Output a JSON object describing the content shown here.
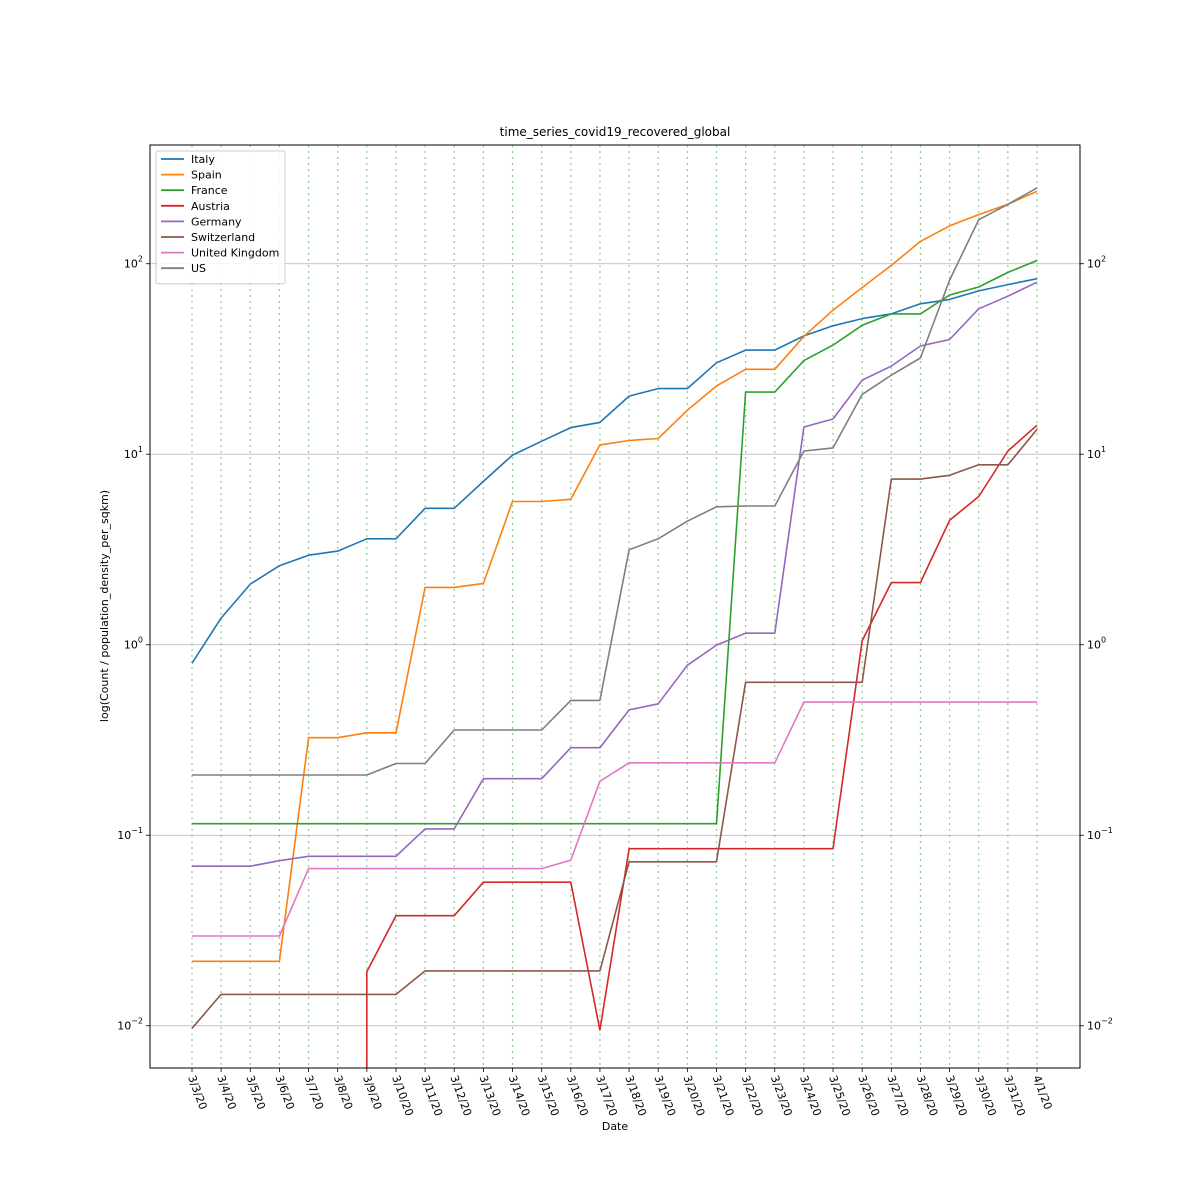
{
  "chart_data": {
    "type": "line",
    "title": "time_series_covid19_recovered_global",
    "xlabel": "Date",
    "ylabel": "log(Count / population_density_per_sqkm)",
    "y_scale": "log",
    "ylim": [
      0.006,
      420
    ],
    "y_ticks": [
      0.01,
      0.1,
      1,
      10,
      100
    ],
    "y_tick_labels": [
      {
        "base": "10",
        "exp": "−2"
      },
      {
        "base": "10",
        "exp": "−1"
      },
      {
        "base": "10",
        "exp": "0"
      },
      {
        "base": "10",
        "exp": "1"
      },
      {
        "base": "10",
        "exp": "2"
      }
    ],
    "grid": {
      "horizontal": "major y ticks (gray solid)",
      "vertical": "every date (green dotted)"
    },
    "legend_position": "top-left",
    "dual_y_axis": true,
    "categories": [
      "3/3/20",
      "3/4/20",
      "3/5/20",
      "3/6/20",
      "3/7/20",
      "3/8/20",
      "3/9/20",
      "3/10/20",
      "3/11/20",
      "3/12/20",
      "3/13/20",
      "3/14/20",
      "3/15/20",
      "3/16/20",
      "3/17/20",
      "3/18/20",
      "3/19/20",
      "3/20/20",
      "3/21/20",
      "3/22/20",
      "3/23/20",
      "3/24/20",
      "3/25/20",
      "3/26/20",
      "3/27/20",
      "3/28/20",
      "3/29/20",
      "3/30/20",
      "3/31/20",
      "4/1/20"
    ],
    "series": [
      {
        "name": "Italy",
        "color": "#1f77b4",
        "values": [
          0.8,
          1.38,
          2.08,
          2.6,
          2.95,
          3.1,
          3.6,
          3.6,
          5.2,
          5.2,
          7.2,
          9.9,
          11.7,
          13.8,
          14.7,
          20.2,
          22.1,
          22.1,
          30.2,
          35.2,
          35.2,
          41.8,
          47.2,
          51.5,
          54.5,
          61.6,
          65.0,
          72.0,
          77.7,
          83.4
        ]
      },
      {
        "name": "Spain",
        "color": "#ff7f0e",
        "values": [
          0.0218,
          0.0218,
          0.0218,
          0.0218,
          0.325,
          0.325,
          0.345,
          0.345,
          2.0,
          2.0,
          2.1,
          5.65,
          5.65,
          5.8,
          11.2,
          11.8,
          12.1,
          17.0,
          22.8,
          27.9,
          27.9,
          41.6,
          57.0,
          75.0,
          98.0,
          131,
          158,
          181,
          205,
          240
        ]
      },
      {
        "name": "France",
        "color": "#2ca02c",
        "values": [
          0.115,
          0.115,
          0.115,
          0.115,
          0.115,
          0.115,
          0.115,
          0.115,
          0.115,
          0.115,
          0.115,
          0.115,
          0.115,
          0.115,
          0.115,
          0.115,
          0.115,
          0.115,
          0.115,
          21.2,
          21.2,
          31.0,
          37.4,
          47.5,
          54.5,
          54.5,
          68.5,
          75.5,
          90.0,
          104
        ]
      },
      {
        "name": "Austria",
        "color": "#d62728",
        "values": [
          null,
          null,
          null,
          null,
          null,
          null,
          0.0192,
          0.0378,
          0.0378,
          0.0378,
          0.0567,
          0.0567,
          0.0567,
          0.0567,
          0.0095,
          0.085,
          0.085,
          0.085,
          0.085,
          0.085,
          0.085,
          0.085,
          0.085,
          1.05,
          2.12,
          2.12,
          4.5,
          6.0,
          10.4,
          14.2
        ]
      },
      {
        "name": "Germany",
        "color": "#9467bd",
        "values": [
          0.0688,
          0.0688,
          0.0688,
          0.0735,
          0.0775,
          0.0775,
          0.0775,
          0.0775,
          0.108,
          0.108,
          0.198,
          0.198,
          0.198,
          0.288,
          0.288,
          0.455,
          0.49,
          0.78,
          0.995,
          1.15,
          1.15,
          13.9,
          15.3,
          24.5,
          29.0,
          37.0,
          40.0,
          58.0,
          67.5,
          80.0
        ]
      },
      {
        "name": "Switzerland",
        "color": "#8c564b",
        "values": [
          0.0097,
          0.0146,
          0.0146,
          0.0146,
          0.0146,
          0.0146,
          0.0146,
          0.0146,
          0.0194,
          0.0194,
          0.0194,
          0.0194,
          0.0194,
          0.0194,
          0.0194,
          0.0725,
          0.0725,
          0.0725,
          0.0725,
          0.635,
          0.635,
          0.635,
          0.635,
          0.635,
          7.4,
          7.4,
          7.75,
          8.8,
          8.8,
          13.5
        ]
      },
      {
        "name": "United Kingdom",
        "color": "#e377c2",
        "values": [
          0.0296,
          0.0296,
          0.0296,
          0.0296,
          0.0668,
          0.0668,
          0.0668,
          0.0668,
          0.0668,
          0.0668,
          0.0668,
          0.0668,
          0.0668,
          0.074,
          0.192,
          0.24,
          0.24,
          0.24,
          0.24,
          0.24,
          0.24,
          0.5,
          0.5,
          0.5,
          0.5,
          0.5,
          0.5,
          0.5,
          0.5,
          0.5
        ]
      },
      {
        "name": "US",
        "color": "#7f7f7f",
        "values": [
          0.207,
          0.207,
          0.207,
          0.207,
          0.207,
          0.207,
          0.207,
          0.238,
          0.238,
          0.357,
          0.357,
          0.357,
          0.357,
          0.51,
          0.51,
          3.15,
          3.6,
          4.45,
          5.3,
          5.35,
          5.35,
          10.4,
          10.8,
          20.6,
          26.0,
          32.0,
          82.0,
          170,
          205,
          250
        ]
      }
    ]
  }
}
